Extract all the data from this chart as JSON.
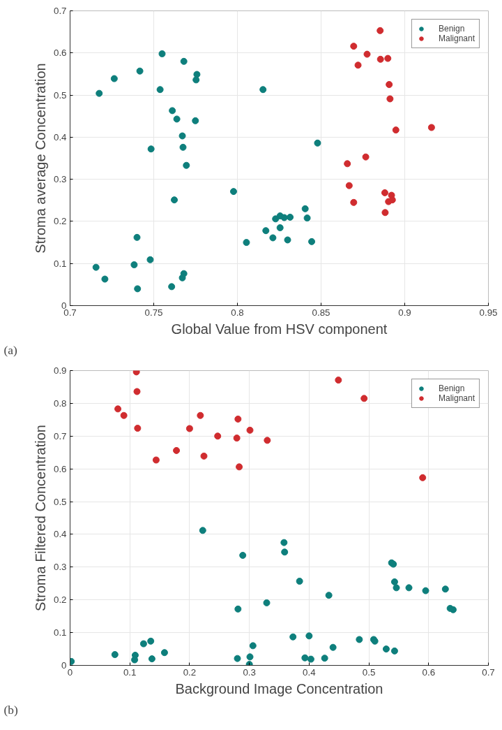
{
  "chart_data": [
    {
      "type": "scatter",
      "xlabel": "Global Value from HSV component",
      "ylabel": "Stroma average Concentration",
      "annotations": [
        "(a)"
      ],
      "xlim": [
        0.7,
        0.95
      ],
      "xticks": [
        0.7,
        0.75,
        0.8,
        0.85,
        0.9,
        0.95
      ],
      "ylim": [
        0,
        0.7
      ],
      "yticks": [
        0,
        0.1,
        0.2,
        0.3,
        0.4,
        0.5,
        0.6,
        0.7
      ],
      "grid": true,
      "legend": "top right",
      "marker": "circle",
      "series": [
        {
          "name": "Benign",
          "color": "#0e7f7c",
          "x": [
            0.7174,
            0.7264,
            0.7417,
            0.755,
            0.768,
            0.7758,
            0.7753,
            0.7538,
            0.7611,
            0.7638,
            0.7749,
            0.7671,
            0.7484,
            0.7675,
            0.7695,
            0.7623,
            0.7977,
            0.74,
            0.7479,
            0.7383,
            0.7155,
            0.7208,
            0.7403,
            0.7607,
            0.768,
            0.7671,
            0.8153,
            0.8054,
            0.817,
            0.8212,
            0.8228,
            0.8479,
            0.8405,
            0.8417,
            0.8255,
            0.828,
            0.8315,
            0.8255,
            0.83,
            0.8444
          ],
          "values": [
            0.504,
            0.539,
            0.557,
            0.598,
            0.58,
            0.549,
            0.536,
            0.513,
            0.463,
            0.443,
            0.439,
            0.403,
            0.372,
            0.376,
            0.333,
            0.251,
            0.271,
            0.162,
            0.109,
            0.097,
            0.091,
            0.063,
            0.04,
            0.045,
            0.076,
            0.066,
            0.513,
            0.15,
            0.178,
            0.161,
            0.206,
            0.386,
            0.23,
            0.208,
            0.213,
            0.209,
            0.21,
            0.185,
            0.156,
            0.152
          ]
        },
        {
          "name": "Malignant",
          "color": "#d02c2f",
          "x": [
            0.8853,
            0.8695,
            0.8775,
            0.8855,
            0.8899,
            0.8721,
            0.8907,
            0.8912,
            0.8947,
            0.916,
            0.8767,
            0.8657,
            0.8668,
            0.8695,
            0.8881,
            0.8921,
            0.8926,
            0.8903,
            0.8883
          ],
          "values": [
            0.653,
            0.616,
            0.597,
            0.585,
            0.587,
            0.571,
            0.525,
            0.491,
            0.417,
            0.423,
            0.353,
            0.337,
            0.285,
            0.245,
            0.268,
            0.262,
            0.251,
            0.247,
            0.221
          ]
        }
      ]
    },
    {
      "type": "scatter",
      "xlabel": "Background Image Concentration",
      "ylabel": "Stroma Filtered Concentration",
      "annotations": [
        "(b)"
      ],
      "xlim": [
        0,
        0.7
      ],
      "xticks": [
        0,
        0.1,
        0.2,
        0.3,
        0.4,
        0.5,
        0.6,
        0.7
      ],
      "ylim": [
        0,
        0.9
      ],
      "yticks": [
        0,
        0.1,
        0.2,
        0.3,
        0.4,
        0.5,
        0.6,
        0.7,
        0.8,
        0.9
      ],
      "grid": true,
      "legend": "top right",
      "marker": "circle",
      "series": [
        {
          "name": "Benign",
          "color": "#0e7f7c",
          "x": [
            0.222,
            0.289,
            0.281,
            0.329,
            0.358,
            0.359,
            0.384,
            0.433,
            0.538,
            0.541,
            0.543,
            0.546,
            0.567,
            0.595,
            0.628,
            0.636,
            0.641,
            0.002,
            0.075,
            0.109,
            0.108,
            0.123,
            0.135,
            0.137,
            0.158,
            0.28,
            0.301,
            0.306,
            0.3,
            0.373,
            0.4,
            0.393,
            0.403,
            0.426,
            0.44,
            0.484,
            0.508,
            0.51,
            0.529,
            0.543
          ],
          "values": [
            0.412,
            0.336,
            0.172,
            0.191,
            0.375,
            0.346,
            0.257,
            0.214,
            0.313,
            0.309,
            0.255,
            0.237,
            0.237,
            0.228,
            0.233,
            0.174,
            0.17,
            0.012,
            0.033,
            0.031,
            0.017,
            0.066,
            0.074,
            0.02,
            0.039,
            0.021,
            0.026,
            0.06,
            0.003,
            0.087,
            0.09,
            0.023,
            0.019,
            0.022,
            0.055,
            0.079,
            0.079,
            0.074,
            0.05,
            0.044
          ]
        },
        {
          "name": "Malignant",
          "color": "#d02c2f",
          "x": [
            0.111,
            0.112,
            0.08,
            0.09,
            0.113,
            0.144,
            0.178,
            0.2,
            0.218,
            0.224,
            0.247,
            0.281,
            0.279,
            0.283,
            0.301,
            0.33,
            0.449,
            0.492,
            0.59
          ],
          "values": [
            0.896,
            0.836,
            0.783,
            0.763,
            0.724,
            0.627,
            0.656,
            0.723,
            0.763,
            0.639,
            0.7,
            0.752,
            0.694,
            0.606,
            0.718,
            0.687,
            0.871,
            0.815,
            0.573
          ]
        }
      ]
    }
  ]
}
